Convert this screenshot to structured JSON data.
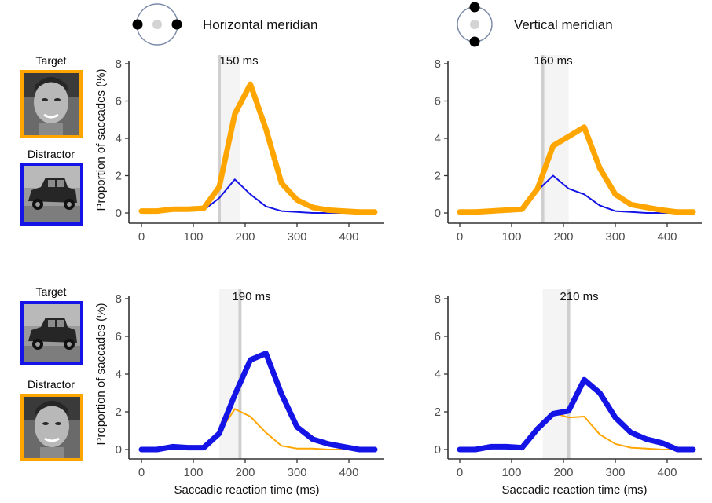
{
  "headers": {
    "horizontal": "Horizontal meridian",
    "vertical": "Vertical meridian"
  },
  "rows": [
    {
      "target_label": "Target",
      "distractor_label": "Distractor",
      "target_image": "face-photo",
      "distractor_image": "vintage-car-photo"
    },
    {
      "target_label": "Target",
      "distractor_label": "Distractor",
      "target_image": "vintage-car-photo",
      "distractor_image": "face-photo"
    }
  ],
  "axis_labels": {
    "y": "Proportion of saccades (%)",
    "x": "Saccadic reaction time (ms)"
  },
  "colors": {
    "face": "#FFA500",
    "vehicle": "#1414E6",
    "axis": "#333333",
    "tick_text": "#4d4d4d",
    "shade": "#ebebeb",
    "vline": "#cfcfcf"
  },
  "chart_data": [
    {
      "type": "line",
      "meridian": "Horizontal meridian",
      "annotation": "150 ms",
      "vline": 150,
      "shade": [
        150,
        190
      ],
      "xlim": [
        -10,
        460
      ],
      "ylim": [
        -0.3,
        8.3
      ],
      "xticks": [
        0,
        100,
        200,
        300,
        400
      ],
      "yticks": [
        0,
        2,
        4,
        6,
        8
      ],
      "x": [
        0,
        30,
        60,
        90,
        120,
        150,
        180,
        210,
        240,
        270,
        300,
        330,
        360,
        390,
        420,
        450
      ],
      "series": [
        {
          "role": "target",
          "color": "#FFA500",
          "width": "thick",
          "values": [
            0.1,
            0.1,
            0.2,
            0.2,
            0.25,
            1.4,
            5.3,
            6.9,
            4.5,
            1.6,
            0.7,
            0.3,
            0.15,
            0.1,
            0.05,
            0.05
          ]
        },
        {
          "role": "distractor",
          "color": "#1414E6",
          "width": "thin",
          "values": [
            0.0,
            0.05,
            0.15,
            0.15,
            0.15,
            0.8,
            1.8,
            1.0,
            0.35,
            0.1,
            0.05,
            0.0,
            0.0,
            0.0,
            0.0,
            0.0
          ]
        }
      ]
    },
    {
      "type": "line",
      "meridian": "Vertical meridian",
      "annotation": "160 ms",
      "vline": 160,
      "shade": [
        160,
        210
      ],
      "xlim": [
        -10,
        460
      ],
      "ylim": [
        -0.3,
        8.3
      ],
      "xticks": [
        0,
        100,
        200,
        300,
        400
      ],
      "yticks": [
        0,
        2,
        4,
        6,
        8
      ],
      "x": [
        0,
        30,
        60,
        90,
        120,
        150,
        180,
        210,
        240,
        270,
        300,
        330,
        360,
        390,
        420,
        450
      ],
      "series": [
        {
          "role": "target",
          "color": "#FFA500",
          "width": "thick",
          "values": [
            0.05,
            0.05,
            0.1,
            0.15,
            0.2,
            1.3,
            3.6,
            4.1,
            4.6,
            2.4,
            1.0,
            0.45,
            0.3,
            0.15,
            0.05,
            0.05
          ]
        },
        {
          "role": "distractor",
          "color": "#1414E6",
          "width": "thin",
          "values": [
            0.0,
            0.0,
            0.15,
            0.2,
            0.1,
            1.2,
            2.0,
            1.3,
            1.0,
            0.4,
            0.1,
            0.05,
            0.0,
            0.0,
            0.0,
            0.0
          ]
        }
      ]
    },
    {
      "type": "line",
      "meridian": "Horizontal meridian",
      "annotation": "190 ms",
      "vline": 190,
      "shade": [
        150,
        190
      ],
      "xlim": [
        -10,
        460
      ],
      "ylim": [
        -0.3,
        8.3
      ],
      "xticks": [
        0,
        100,
        200,
        300,
        400
      ],
      "yticks": [
        0,
        2,
        4,
        6,
        8
      ],
      "x": [
        0,
        30,
        60,
        90,
        120,
        150,
        180,
        210,
        240,
        270,
        300,
        330,
        360,
        390,
        420,
        450
      ],
      "series": [
        {
          "role": "target",
          "color": "#1414E6",
          "width": "thick",
          "values": [
            0.0,
            0.0,
            0.15,
            0.1,
            0.1,
            0.85,
            2.9,
            4.75,
            5.1,
            2.95,
            1.2,
            0.55,
            0.3,
            0.15,
            0.0,
            0.0
          ]
        },
        {
          "role": "distractor",
          "color": "#FFA500",
          "width": "thin",
          "values": [
            0.0,
            0.0,
            0.1,
            0.1,
            0.15,
            0.9,
            2.15,
            1.75,
            0.9,
            0.2,
            0.05,
            0.05,
            0.0,
            0.0,
            0.0,
            0.0
          ]
        }
      ]
    },
    {
      "type": "line",
      "meridian": "Vertical meridian",
      "annotation": "210 ms",
      "vline": 210,
      "shade": [
        160,
        210
      ],
      "xlim": [
        -10,
        460
      ],
      "ylim": [
        -0.3,
        8.3
      ],
      "xticks": [
        0,
        100,
        200,
        300,
        400
      ],
      "yticks": [
        0,
        2,
        4,
        6,
        8
      ],
      "x": [
        0,
        30,
        60,
        90,
        120,
        150,
        180,
        210,
        240,
        270,
        300,
        330,
        360,
        390,
        420,
        450
      ],
      "series": [
        {
          "role": "target",
          "color": "#1414E6",
          "width": "thick",
          "values": [
            0.0,
            0.0,
            0.15,
            0.15,
            0.1,
            1.1,
            1.9,
            2.05,
            3.7,
            3.0,
            1.7,
            0.9,
            0.55,
            0.35,
            0.0,
            0.0
          ]
        },
        {
          "role": "distractor",
          "color": "#FFA500",
          "width": "thin",
          "values": [
            0.0,
            0.0,
            0.1,
            0.1,
            0.1,
            1.05,
            1.95,
            1.7,
            1.75,
            0.8,
            0.3,
            0.1,
            0.05,
            0.0,
            0.0,
            0.0
          ]
        }
      ]
    }
  ]
}
